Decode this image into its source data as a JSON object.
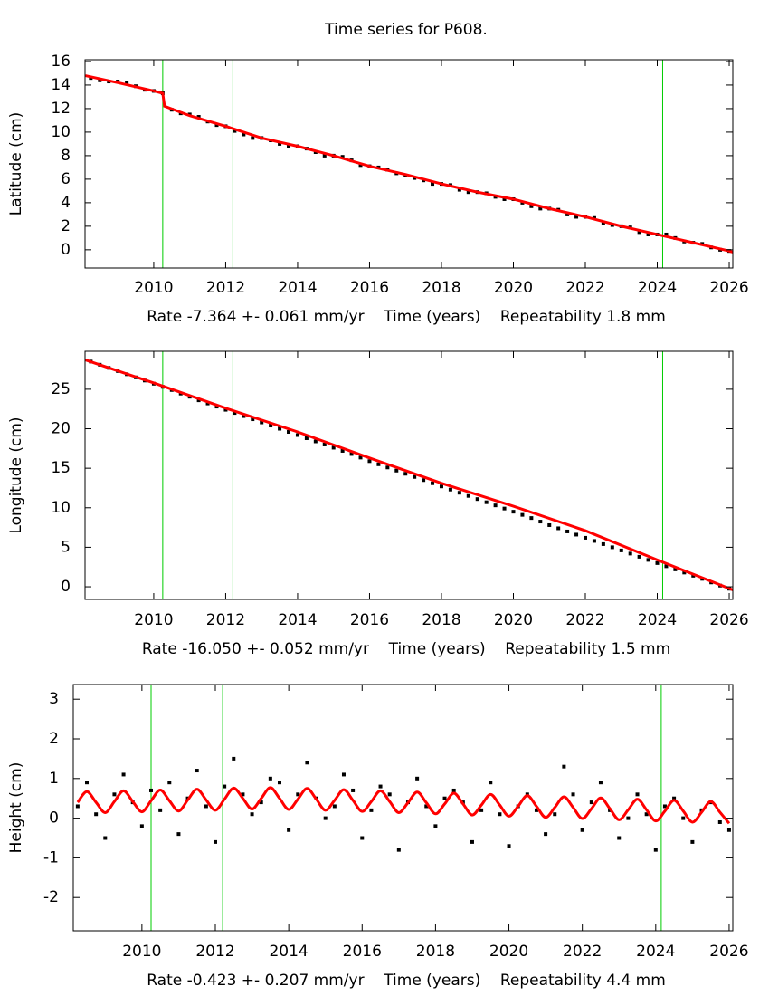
{
  "chart_data": [
    {
      "type": "scatter",
      "title": "Time series for P608.",
      "ylabel": "Latitude (cm)",
      "xlabel": "Rate -7.364 +- 0.061 mm/yr    Time (years)    Repeatability 1.8 mm",
      "xlim": [
        2008.09,
        2026.1
      ],
      "ylim": [
        -1.55,
        16.15
      ],
      "xticks": [
        2010,
        2012,
        2014,
        2016,
        2018,
        2020,
        2022,
        2024,
        2026
      ],
      "yticks": [
        0,
        2,
        4,
        6,
        8,
        10,
        12,
        14,
        16
      ],
      "breaks": [
        2010.25,
        2012.2,
        2024.15
      ],
      "break_color": "#00cc00",
      "x": [
        2008.25,
        2008.5,
        2008.75,
        2009,
        2009.25,
        2009.5,
        2009.75,
        2010,
        2010.25,
        2010.5,
        2010.75,
        2011,
        2011.25,
        2011.5,
        2011.75,
        2012,
        2012.25,
        2012.5,
        2012.75,
        2013,
        2013.25,
        2013.5,
        2013.75,
        2014,
        2014.25,
        2014.5,
        2014.75,
        2015,
        2015.25,
        2015.5,
        2015.75,
        2016,
        2016.25,
        2016.5,
        2016.75,
        2017,
        2017.25,
        2017.5,
        2017.75,
        2018,
        2018.25,
        2018.5,
        2018.75,
        2019,
        2019.25,
        2019.5,
        2019.75,
        2020,
        2020.25,
        2020.5,
        2020.75,
        2021,
        2021.25,
        2021.5,
        2021.75,
        2022,
        2022.25,
        2022.5,
        2022.75,
        2023,
        2023.25,
        2023.5,
        2023.75,
        2024,
        2024.25,
        2024.5,
        2024.75,
        2025,
        2025.25,
        2025.5,
        2025.75,
        2026
      ],
      "series": [
        {
          "type": "scatter",
          "color": "#000000",
          "values": [
            14.6,
            14.4,
            14.3,
            14.3,
            14.2,
            13.9,
            13.6,
            13.5,
            13.3,
            11.9,
            11.6,
            11.5,
            11.3,
            10.9,
            10.6,
            10.5,
            10.1,
            9.8,
            9.5,
            9.5,
            9.3,
            9.0,
            8.8,
            8.8,
            8.6,
            8.3,
            8.0,
            8.0,
            7.9,
            7.6,
            7.2,
            7.1,
            7.0,
            6.8,
            6.5,
            6.3,
            6.1,
            5.9,
            5.6,
            5.6,
            5.5,
            5.1,
            4.9,
            4.9,
            4.8,
            4.5,
            4.3,
            4.3,
            4.0,
            3.7,
            3.5,
            3.5,
            3.4,
            3.0,
            2.8,
            2.8,
            2.7,
            2.3,
            2.1,
            2.0,
            1.9,
            1.5,
            1.3,
            1.3,
            1.3,
            1.0,
            0.7,
            0.6,
            0.5,
            0.2,
            0.0,
            -0.1
          ]
        },
        {
          "type": "line",
          "color": "#ff0000",
          "x": [
            2008.1,
            2009,
            2010,
            2010.25,
            2010.3,
            2011,
            2012,
            2013,
            2014,
            2015,
            2016,
            2017,
            2018,
            2019,
            2020,
            2021,
            2022,
            2023,
            2024,
            2025,
            2026,
            2026.1
          ],
          "values": [
            14.8,
            14.2,
            13.5,
            13.3,
            12.2,
            11.4,
            10.5,
            9.5,
            8.8,
            8.0,
            7.1,
            6.4,
            5.6,
            4.9,
            4.3,
            3.5,
            2.8,
            2.0,
            1.3,
            0.6,
            -0.1,
            -0.2
          ]
        }
      ]
    },
    {
      "type": "scatter",
      "ylabel": "Longitude (cm)",
      "xlabel": "Rate -16.050 +- 0.052 mm/yr    Time (years)    Repeatability 1.5 mm",
      "xlim": [
        2008.09,
        2026.1
      ],
      "ylim": [
        -1.6,
        29.8
      ],
      "xticks": [
        2010,
        2012,
        2014,
        2016,
        2018,
        2020,
        2022,
        2024,
        2026
      ],
      "yticks": [
        0,
        5,
        10,
        15,
        20,
        25
      ],
      "breaks": [
        2010.25,
        2012.2,
        2024.15
      ],
      "break_color": "#00cc00",
      "x": [
        2008.25,
        2008.5,
        2008.75,
        2009,
        2009.25,
        2009.5,
        2009.75,
        2010,
        2010.25,
        2010.5,
        2010.75,
        2011,
        2011.25,
        2011.5,
        2011.75,
        2012,
        2012.25,
        2012.5,
        2012.75,
        2013,
        2013.25,
        2013.5,
        2013.75,
        2014,
        2014.25,
        2014.5,
        2014.75,
        2015,
        2015.25,
        2015.5,
        2015.75,
        2016,
        2016.25,
        2016.5,
        2016.75,
        2017,
        2017.25,
        2017.5,
        2017.75,
        2018,
        2018.25,
        2018.5,
        2018.75,
        2019,
        2019.25,
        2019.5,
        2019.75,
        2020,
        2020.25,
        2020.5,
        2020.75,
        2021,
        2021.25,
        2021.5,
        2021.75,
        2022,
        2022.25,
        2022.5,
        2022.75,
        2023,
        2023.25,
        2023.5,
        2023.75,
        2024,
        2024.25,
        2024.5,
        2024.75,
        2025,
        2025.25,
        2025.5,
        2025.75,
        2026
      ],
      "series": [
        {
          "type": "scatter",
          "color": "#000000",
          "values": [
            28.5,
            28.1,
            27.7,
            27.3,
            26.9,
            26.5,
            26.1,
            25.7,
            25.3,
            24.9,
            24.45,
            24.05,
            23.6,
            23.2,
            22.8,
            22.4,
            22.0,
            21.6,
            21.2,
            20.8,
            20.4,
            20.0,
            19.6,
            19.2,
            18.8,
            18.4,
            18.0,
            17.6,
            17.2,
            16.8,
            16.35,
            15.9,
            15.5,
            15.1,
            14.7,
            14.3,
            13.9,
            13.5,
            13.1,
            12.7,
            12.3,
            11.9,
            11.5,
            11.1,
            10.7,
            10.3,
            9.9,
            9.5,
            9.1,
            8.7,
            8.25,
            7.8,
            7.4,
            7.0,
            6.6,
            6.2,
            5.8,
            5.4,
            5.0,
            4.6,
            4.2,
            3.8,
            3.4,
            3.0,
            2.6,
            2.2,
            1.8,
            1.4,
            1.0,
            0.55,
            0.15,
            -0.25
          ]
        },
        {
          "type": "line",
          "color": "#ff0000",
          "x": [
            2008.1,
            2010,
            2012,
            2014,
            2016,
            2018,
            2020,
            2022,
            2024,
            2026.1
          ],
          "values": [
            28.7,
            25.8,
            22.6,
            19.6,
            16.3,
            13.1,
            10.2,
            7.1,
            3.4,
            -0.4
          ]
        }
      ]
    },
    {
      "type": "scatter",
      "ylabel": "Height (cm)",
      "xlabel": "Rate -0.423 +- 0.207 mm/yr    Time (years)    Repeatability 4.4 mm",
      "xlim": [
        2008.13,
        2026.1
      ],
      "ylim": [
        -2.84,
        3.37
      ],
      "xticks": [
        2010,
        2012,
        2014,
        2016,
        2018,
        2020,
        2022,
        2024,
        2026
      ],
      "yticks": [
        -2,
        -1,
        0,
        1,
        2,
        3
      ],
      "breaks": [
        2010.25,
        2012.2,
        2024.15
      ],
      "break_color": "#00cc00",
      "x": [
        2008.25,
        2008.5,
        2008.75,
        2009,
        2009.25,
        2009.5,
        2009.75,
        2010,
        2010.25,
        2010.5,
        2010.75,
        2011,
        2011.25,
        2011.5,
        2011.75,
        2012,
        2012.25,
        2012.5,
        2012.75,
        2013,
        2013.25,
        2013.5,
        2013.75,
        2014,
        2014.25,
        2014.5,
        2014.75,
        2015,
        2015.25,
        2015.5,
        2015.75,
        2016,
        2016.25,
        2016.5,
        2016.75,
        2017,
        2017.25,
        2017.5,
        2017.75,
        2018,
        2018.25,
        2018.5,
        2018.75,
        2019,
        2019.25,
        2019.5,
        2019.75,
        2020,
        2020.25,
        2020.5,
        2020.75,
        2021,
        2021.25,
        2021.5,
        2021.75,
        2022,
        2022.25,
        2022.5,
        2022.75,
        2023,
        2023.25,
        2023.5,
        2023.75,
        2024,
        2024.25,
        2024.5,
        2024.75,
        2025,
        2025.25,
        2025.5,
        2025.75,
        2026
      ],
      "series": [
        {
          "type": "scatter",
          "color": "#000000",
          "values": [
            0.3,
            0.9,
            0.1,
            -0.5,
            0.6,
            1.1,
            0.4,
            -0.2,
            0.7,
            0.2,
            0.9,
            -0.4,
            0.5,
            1.2,
            0.3,
            -0.6,
            0.8,
            1.5,
            0.6,
            0.1,
            0.4,
            1.0,
            0.9,
            -0.3,
            0.6,
            1.4,
            0.5,
            0.0,
            0.3,
            1.1,
            0.7,
            -0.5,
            0.2,
            0.8,
            0.6,
            -0.8,
            0.4,
            1.0,
            0.3,
            -0.2,
            0.5,
            0.7,
            0.4,
            -0.6,
            0.2,
            0.9,
            0.1,
            -0.7,
            0.3,
            0.6,
            0.2,
            -0.4,
            0.1,
            1.3,
            0.6,
            -0.3,
            0.4,
            0.9,
            0.2,
            -0.5,
            0.0,
            0.6,
            0.1,
            -0.8,
            0.3,
            0.5,
            0.0,
            -0.6,
            0.2,
            0.4,
            -0.1,
            -0.3
          ]
        },
        {
          "type": "line",
          "color": "#ff0000",
          "smooth": true,
          "values": [
            0.4,
            0.67,
            0.4,
            0.14,
            0.42,
            0.69,
            0.42,
            0.16,
            0.44,
            0.71,
            0.44,
            0.18,
            0.46,
            0.73,
            0.46,
            0.2,
            0.48,
            0.76,
            0.5,
            0.23,
            0.5,
            0.77,
            0.5,
            0.22,
            0.48,
            0.75,
            0.48,
            0.2,
            0.45,
            0.72,
            0.45,
            0.17,
            0.42,
            0.69,
            0.42,
            0.14,
            0.39,
            0.66,
            0.39,
            0.11,
            0.36,
            0.63,
            0.36,
            0.08,
            0.33,
            0.6,
            0.33,
            0.05,
            0.3,
            0.57,
            0.3,
            0.02,
            0.27,
            0.54,
            0.27,
            -0.01,
            0.24,
            0.51,
            0.24,
            -0.04,
            0.21,
            0.48,
            0.21,
            -0.07,
            0.18,
            0.45,
            0.18,
            -0.1,
            0.15,
            0.42,
            0.15,
            -0.13
          ]
        }
      ]
    }
  ]
}
